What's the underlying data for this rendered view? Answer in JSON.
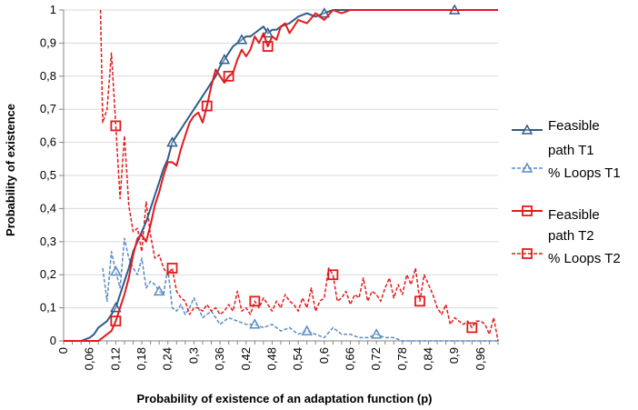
{
  "chart_data": {
    "type": "line",
    "xlabel": "Probability of existence of an adaptation function (p)",
    "ylabel": "Probability of existence",
    "xlim": [
      0,
      1
    ],
    "ylim": [
      0,
      1
    ],
    "yticks": [
      "0",
      "0,1",
      "0,2",
      "0,3",
      "0,4",
      "0,5",
      "0,6",
      "0,7",
      "0,8",
      "0,9",
      "1"
    ],
    "xticks": [
      "0",
      "0,06",
      "0,12",
      "0,18",
      "0,24",
      "0,3",
      "0,36",
      "0,42",
      "0,48",
      "0,54",
      "0,6",
      "0,66",
      "0,72",
      "0,78",
      "0,84",
      "0,9",
      "0,96"
    ],
    "colors": {
      "t1": "#2f5d8a",
      "t1_loops": "#5b8cc4",
      "t2": "#e31a1c"
    },
    "series": [
      {
        "name": "Feasible path T1",
        "legend_lines": [
          "Feasible",
          "path T1"
        ],
        "style": "solid",
        "marker": "triangle",
        "color": "#2f5d8a",
        "x": [
          0,
          0.02,
          0.04,
          0.06,
          0.07,
          0.08,
          0.09,
          0.1,
          0.11,
          0.12,
          0.13,
          0.14,
          0.15,
          0.16,
          0.17,
          0.18,
          0.19,
          0.2,
          0.21,
          0.22,
          0.23,
          0.24,
          0.25,
          0.26,
          0.27,
          0.28,
          0.29,
          0.3,
          0.31,
          0.32,
          0.33,
          0.34,
          0.35,
          0.36,
          0.37,
          0.38,
          0.39,
          0.4,
          0.41,
          0.42,
          0.43,
          0.44,
          0.45,
          0.46,
          0.47,
          0.48,
          0.49,
          0.5,
          0.52,
          0.54,
          0.56,
          0.58,
          0.6,
          0.62,
          0.64,
          0.66,
          0.7,
          0.75,
          0.8,
          0.85,
          0.9,
          0.95,
          1.0
        ],
        "values": [
          0,
          0,
          0,
          0.01,
          0.02,
          0.04,
          0.05,
          0.06,
          0.08,
          0.1,
          0.14,
          0.18,
          0.22,
          0.27,
          0.3,
          0.33,
          0.36,
          0.4,
          0.44,
          0.48,
          0.52,
          0.55,
          0.6,
          0.62,
          0.64,
          0.66,
          0.68,
          0.7,
          0.72,
          0.74,
          0.76,
          0.78,
          0.8,
          0.83,
          0.85,
          0.87,
          0.89,
          0.9,
          0.91,
          0.92,
          0.92,
          0.93,
          0.94,
          0.95,
          0.93,
          0.94,
          0.94,
          0.95,
          0.96,
          0.98,
          0.99,
          0.98,
          0.99,
          1.0,
          1.0,
          1.0,
          1.0,
          1.0,
          1.0,
          1.0,
          1.0,
          1.0,
          1.0
        ],
        "markers_at": [
          0.12,
          0.25,
          0.37,
          0.41,
          0.47,
          0.6,
          0.9
        ]
      },
      {
        "name": "% Loops T1",
        "legend_lines": [
          "% Loops T1"
        ],
        "style": "dashed",
        "marker": "triangle",
        "color": "#5b8cc4",
        "x": [
          0.09,
          0.1,
          0.11,
          0.12,
          0.13,
          0.14,
          0.15,
          0.16,
          0.17,
          0.18,
          0.19,
          0.2,
          0.21,
          0.22,
          0.23,
          0.24,
          0.25,
          0.26,
          0.27,
          0.28,
          0.29,
          0.3,
          0.32,
          0.34,
          0.36,
          0.38,
          0.4,
          0.42,
          0.44,
          0.46,
          0.48,
          0.5,
          0.52,
          0.54,
          0.56,
          0.58,
          0.6,
          0.62,
          0.64,
          0.66,
          0.68,
          0.7,
          0.72,
          0.74,
          0.76,
          0.78,
          0.8,
          0.85,
          0.9,
          0.95,
          1.0
        ],
        "values": [
          0.22,
          0.12,
          0.27,
          0.21,
          0.16,
          0.31,
          0.25,
          0.22,
          0.2,
          0.25,
          0.16,
          0.18,
          0.17,
          0.15,
          0.14,
          0.22,
          0.1,
          0.09,
          0.11,
          0.08,
          0.1,
          0.13,
          0.07,
          0.09,
          0.05,
          0.07,
          0.06,
          0.05,
          0.05,
          0.04,
          0.05,
          0.03,
          0.04,
          0.02,
          0.03,
          0.02,
          0.01,
          0.04,
          0.02,
          0.02,
          0.01,
          0.01,
          0.02,
          0.01,
          0.01,
          0.0,
          0.0,
          0.0,
          0.0,
          0.0,
          0.0
        ],
        "markers_at": [
          0.12,
          0.22,
          0.44,
          0.56,
          0.72
        ]
      },
      {
        "name": "Feasible path T2",
        "legend_lines": [
          "Feasible",
          "path T2"
        ],
        "style": "solid",
        "marker": "square",
        "color": "#e31a1c",
        "x": [
          0,
          0.02,
          0.04,
          0.06,
          0.08,
          0.09,
          0.1,
          0.11,
          0.12,
          0.13,
          0.14,
          0.15,
          0.16,
          0.17,
          0.18,
          0.19,
          0.2,
          0.21,
          0.22,
          0.23,
          0.24,
          0.25,
          0.26,
          0.27,
          0.28,
          0.29,
          0.3,
          0.31,
          0.32,
          0.33,
          0.34,
          0.35,
          0.36,
          0.37,
          0.38,
          0.39,
          0.4,
          0.41,
          0.42,
          0.43,
          0.44,
          0.45,
          0.46,
          0.47,
          0.48,
          0.49,
          0.5,
          0.51,
          0.52,
          0.54,
          0.56,
          0.58,
          0.6,
          0.62,
          0.64,
          0.66,
          0.7,
          0.75,
          0.8,
          0.85,
          0.9,
          0.95,
          1.0
        ],
        "values": [
          0,
          0,
          0,
          0,
          0,
          0.01,
          0.02,
          0.03,
          0.06,
          0.1,
          0.14,
          0.19,
          0.26,
          0.31,
          0.32,
          0.3,
          0.35,
          0.41,
          0.45,
          0.5,
          0.54,
          0.54,
          0.53,
          0.58,
          0.62,
          0.66,
          0.68,
          0.69,
          0.66,
          0.71,
          0.77,
          0.82,
          0.8,
          0.78,
          0.8,
          0.81,
          0.85,
          0.88,
          0.86,
          0.88,
          0.92,
          0.9,
          0.93,
          0.89,
          0.92,
          0.91,
          0.95,
          0.96,
          0.93,
          0.97,
          0.96,
          0.99,
          0.97,
          1.0,
          0.99,
          1.0,
          1.0,
          1.0,
          1.0,
          1.0,
          1.0,
          1.0,
          1.0
        ],
        "markers_at": [
          0.12,
          0.33,
          0.38,
          0.47
        ]
      },
      {
        "name": "% Loops T2",
        "legend_lines": [
          "% Loops T2"
        ],
        "style": "dashed",
        "marker": "square",
        "color": "#e31a1c",
        "x": [
          0.085,
          0.09,
          0.1,
          0.11,
          0.12,
          0.13,
          0.14,
          0.15,
          0.16,
          0.17,
          0.18,
          0.19,
          0.2,
          0.21,
          0.22,
          0.23,
          0.24,
          0.25,
          0.26,
          0.27,
          0.28,
          0.29,
          0.3,
          0.31,
          0.32,
          0.33,
          0.34,
          0.35,
          0.36,
          0.37,
          0.38,
          0.39,
          0.4,
          0.41,
          0.42,
          0.43,
          0.44,
          0.45,
          0.46,
          0.47,
          0.48,
          0.49,
          0.5,
          0.51,
          0.52,
          0.53,
          0.54,
          0.55,
          0.56,
          0.57,
          0.58,
          0.59,
          0.6,
          0.61,
          0.62,
          0.63,
          0.64,
          0.65,
          0.66,
          0.67,
          0.68,
          0.69,
          0.7,
          0.71,
          0.72,
          0.73,
          0.74,
          0.75,
          0.76,
          0.77,
          0.78,
          0.79,
          0.8,
          0.81,
          0.82,
          0.83,
          0.84,
          0.85,
          0.86,
          0.87,
          0.88,
          0.89,
          0.9,
          0.91,
          0.92,
          0.93,
          0.94,
          0.95,
          0.96,
          0.97,
          0.98,
          0.99,
          1.0
        ],
        "values": [
          1.0,
          0.66,
          0.7,
          0.87,
          0.65,
          0.43,
          0.62,
          0.41,
          0.33,
          0.34,
          0.27,
          0.42,
          0.32,
          0.25,
          0.26,
          0.22,
          0.2,
          0.22,
          0.15,
          0.13,
          0.12,
          0.08,
          0.1,
          0.1,
          0.09,
          0.11,
          0.09,
          0.1,
          0.08,
          0.09,
          0.11,
          0.09,
          0.15,
          0.09,
          0.1,
          0.08,
          0.12,
          0.1,
          0.13,
          0.11,
          0.09,
          0.12,
          0.1,
          0.14,
          0.12,
          0.11,
          0.09,
          0.13,
          0.1,
          0.16,
          0.09,
          0.12,
          0.13,
          0.22,
          0.2,
          0.12,
          0.13,
          0.15,
          0.11,
          0.14,
          0.13,
          0.19,
          0.12,
          0.15,
          0.14,
          0.12,
          0.16,
          0.19,
          0.13,
          0.17,
          0.14,
          0.2,
          0.17,
          0.22,
          0.12,
          0.2,
          0.17,
          0.14,
          0.1,
          0.08,
          0.11,
          0.05,
          0.07,
          0.06,
          0.05,
          0.06,
          0.04,
          0.06,
          0.06,
          0.05,
          0.02,
          0.07,
          0.0
        ],
        "markers_at": [
          0.12,
          0.25,
          0.44,
          0.62,
          0.82,
          0.94
        ]
      }
    ]
  }
}
